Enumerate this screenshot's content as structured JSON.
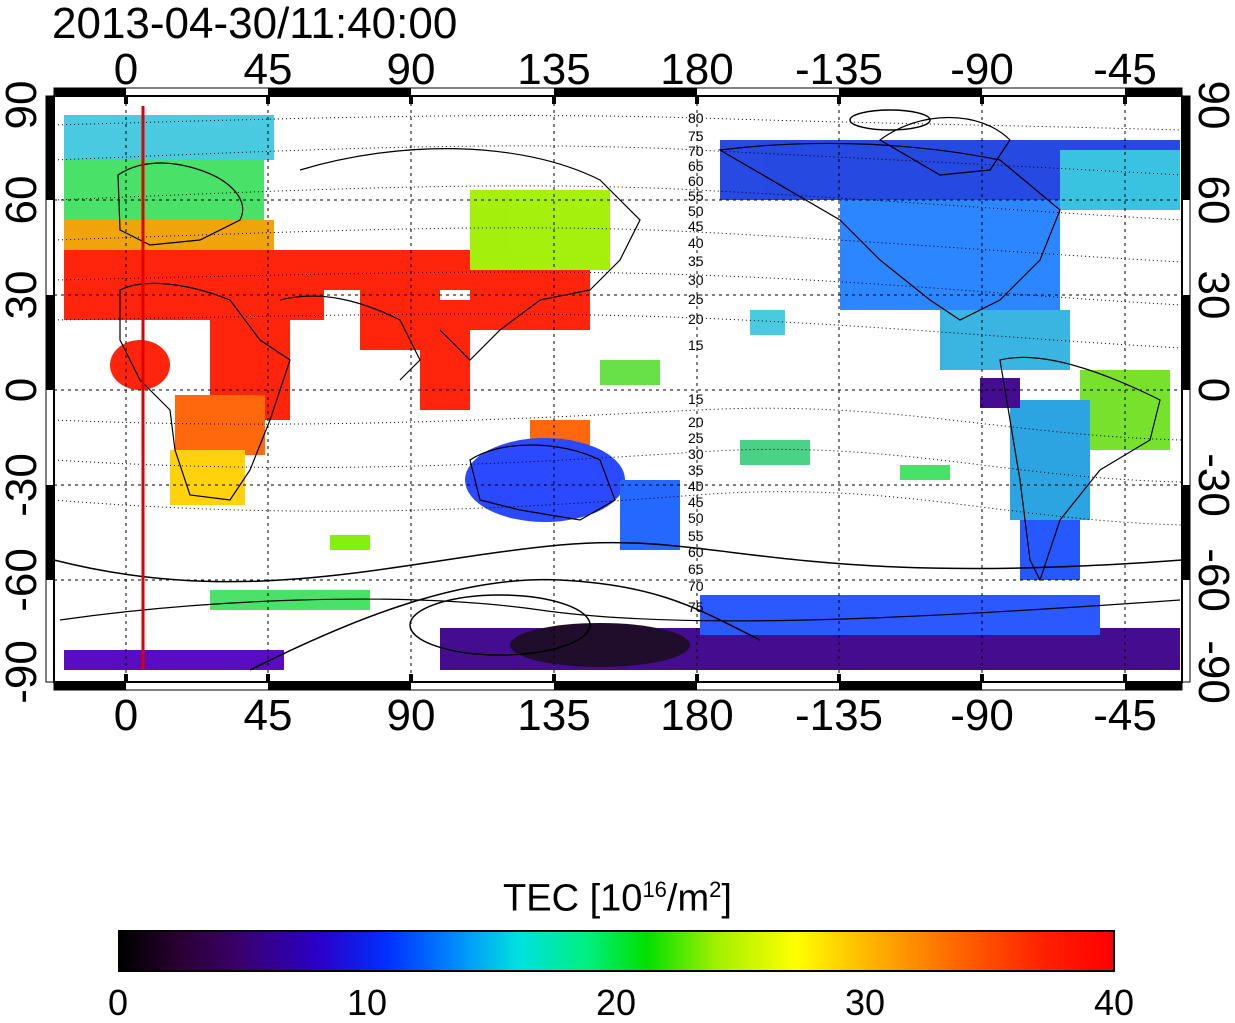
{
  "timestamp": "2013-04-30/11:40:00",
  "map": {
    "lon_ticks_top": [
      "0",
      "45",
      "90",
      "135",
      "180",
      "-135",
      "-90",
      "-45"
    ],
    "lon_ticks_bottom": [
      "0",
      "45",
      "90",
      "135",
      "180",
      "-135",
      "-90",
      "-45"
    ],
    "lat_ticks_left": [
      "90",
      "60",
      "30",
      "0",
      "-30",
      "-60",
      "-90"
    ],
    "lat_ticks_right": [
      "90",
      "60",
      "30",
      "0",
      "-30",
      "-60",
      "-90"
    ],
    "contour_labels_north": [
      "80",
      "75",
      "70",
      "65",
      "60",
      "55",
      "50",
      "45",
      "40",
      "35",
      "30",
      "25",
      "20",
      "15"
    ],
    "contour_labels_south": [
      "15",
      "20",
      "25",
      "30",
      "35",
      "40",
      "45",
      "50",
      "55",
      "60",
      "65",
      "70",
      "75"
    ],
    "terminator_color": "#e00000"
  },
  "colorbar": {
    "title_main": "TEC  [10",
    "title_sup1": "16",
    "title_mid": "/m",
    "title_sup2": "2",
    "title_end": "]",
    "ticks": [
      "0",
      "10",
      "20",
      "30",
      "40"
    ]
  }
}
